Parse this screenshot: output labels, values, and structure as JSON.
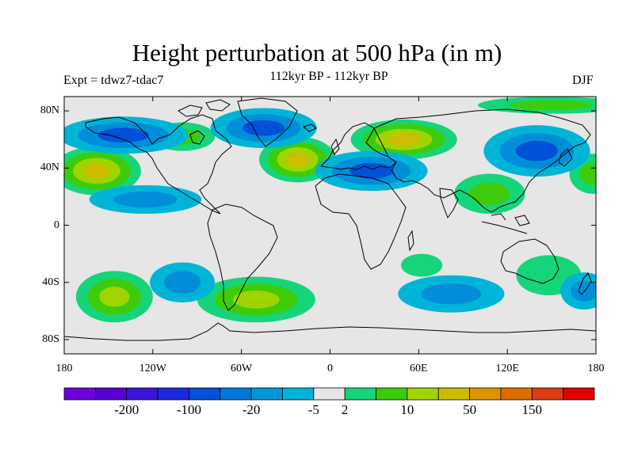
{
  "title": "Height perturbation at 500 hPa (in m)",
  "subtitle": "112kyr BP - 112kyr BP",
  "left_label": "Expt = tdwz7-tdac7",
  "right_label": "DJF",
  "map": {
    "lon_range": [
      -180,
      180
    ],
    "lat_range": [
      -90,
      90
    ],
    "background_color": "#e6e6e6",
    "x_ticks": [
      {
        "lon": -180,
        "label": "180"
      },
      {
        "lon": -120,
        "label": "120W"
      },
      {
        "lon": -60,
        "label": "60W"
      },
      {
        "lon": 0,
        "label": "0"
      },
      {
        "lon": 60,
        "label": "60E"
      },
      {
        "lon": 120,
        "label": "120E"
      },
      {
        "lon": 180,
        "label": "180"
      }
    ],
    "y_ticks": [
      {
        "lat": 80,
        "label": "80N"
      },
      {
        "lat": 40,
        "label": "40N"
      },
      {
        "lat": 0,
        "label": "0"
      },
      {
        "lat": -40,
        "label": "40S"
      },
      {
        "lat": -80,
        "label": "80S"
      }
    ],
    "features": [
      {
        "name": "pacific-north-positive",
        "lon": -158,
        "lat": 38,
        "rlon": 30,
        "rlat": 17,
        "colors": [
          "#16d47a",
          "#3ccc0c",
          "#a0d400",
          "#ccbc00"
        ]
      },
      {
        "name": "atlantic-positive",
        "lon": -22,
        "lat": 46,
        "rlon": 26,
        "rlat": 16,
        "colors": [
          "#16d47a",
          "#3ccc0c",
          "#a0d400",
          "#ccbc00"
        ]
      },
      {
        "name": "siberia-positive",
        "lon": 50,
        "lat": 60,
        "rlon": 36,
        "rlat": 14,
        "colors": [
          "#16d47a",
          "#3ccc0c",
          "#a0d400",
          "#ccbc00"
        ]
      },
      {
        "name": "india-positive",
        "lon": 108,
        "lat": 22,
        "rlon": 24,
        "rlat": 14,
        "colors": [
          "#16d47a",
          "#3ccc0c"
        ]
      },
      {
        "name": "nw-pacific-positive",
        "lon": 178,
        "lat": 36,
        "rlon": 16,
        "rlat": 14,
        "colors": [
          "#16d47a",
          "#3ccc0c"
        ]
      },
      {
        "name": "north-canada-positive",
        "lon": -100,
        "lat": 62,
        "rlon": 22,
        "rlat": 10,
        "colors": [
          "#16d47a",
          "#3ccc0c"
        ]
      },
      {
        "name": "south-pacific-positive",
        "lon": -146,
        "lat": -50,
        "rlon": 26,
        "rlat": 18,
        "colors": [
          "#16d47a",
          "#3ccc0c",
          "#a0d400"
        ]
      },
      {
        "name": "south-atlantic-positive",
        "lon": -50,
        "lat": -52,
        "rlon": 40,
        "rlat": 16,
        "colors": [
          "#16d47a",
          "#3ccc0c",
          "#a0d400"
        ]
      },
      {
        "name": "south-africa-positive",
        "lon": 62,
        "lat": -28,
        "rlon": 14,
        "rlat": 8,
        "colors": [
          "#16d47a"
        ]
      },
      {
        "name": "australia-positive",
        "lon": 148,
        "lat": -35,
        "rlon": 22,
        "rlat": 14,
        "colors": [
          "#16d47a"
        ]
      },
      {
        "name": "arctic-positive",
        "lon": 150,
        "lat": 84,
        "rlon": 50,
        "rlat": 6,
        "colors": [
          "#16d47a",
          "#3ccc0c"
        ]
      },
      {
        "name": "alaska-negative",
        "lon": -140,
        "lat": 63,
        "rlon": 44,
        "rlat": 13,
        "colors": [
          "#00b4d8",
          "#008ed8",
          "#0050d8"
        ]
      },
      {
        "name": "greenland-negative",
        "lon": -45,
        "lat": 68,
        "rlon": 36,
        "rlat": 14,
        "colors": [
          "#00b4d8",
          "#008ed8",
          "#0050d8"
        ]
      },
      {
        "name": "europe-negative",
        "lon": 28,
        "lat": 38,
        "rlon": 38,
        "rlat": 14,
        "colors": [
          "#00b4d8",
          "#008ed8",
          "#0050d8"
        ]
      },
      {
        "name": "east-asia-negative",
        "lon": 140,
        "lat": 52,
        "rlon": 36,
        "rlat": 18,
        "colors": [
          "#00b4d8",
          "#008ed8",
          "#0050d8"
        ]
      },
      {
        "name": "tropical-pacific-negative",
        "lon": -125,
        "lat": 18,
        "rlon": 38,
        "rlat": 10,
        "colors": [
          "#00b4d8",
          "#008ed8"
        ]
      },
      {
        "name": "southeast-pacific-negative",
        "lon": -100,
        "lat": -40,
        "rlon": 22,
        "rlat": 14,
        "colors": [
          "#00b4d8",
          "#008ed8"
        ]
      },
      {
        "name": "indian-ocean-negative",
        "lon": 82,
        "lat": -48,
        "rlon": 36,
        "rlat": 13,
        "colors": [
          "#00b4d8",
          "#008ed8"
        ]
      },
      {
        "name": "tasman-negative",
        "lon": 172,
        "lat": -46,
        "rlon": 16,
        "rlat": 13,
        "colors": [
          "#00b4d8",
          "#008ed8"
        ]
      }
    ]
  },
  "colorbar": {
    "colors": [
      "#6e00dc",
      "#5a00d2",
      "#3c14d8",
      "#1e28dc",
      "#0050d8",
      "#0078d8",
      "#0096d8",
      "#00b4d8",
      "#e6e6e6",
      "#16d47a",
      "#3ccc0c",
      "#a0d400",
      "#ccbc00",
      "#dc9600",
      "#dc6e00",
      "#dc3c14",
      "#e00000"
    ],
    "labels": [
      {
        "after_box": 2,
        "label": "-200"
      },
      {
        "after_box": 4,
        "label": "-100"
      },
      {
        "after_box": 6,
        "label": "-20"
      },
      {
        "after_box": 8,
        "label": "-5"
      },
      {
        "after_box": 9,
        "label": "2"
      },
      {
        "after_box": 11,
        "label": "10"
      },
      {
        "after_box": 13,
        "label": "50"
      },
      {
        "after_box": 15,
        "label": "150"
      }
    ]
  }
}
